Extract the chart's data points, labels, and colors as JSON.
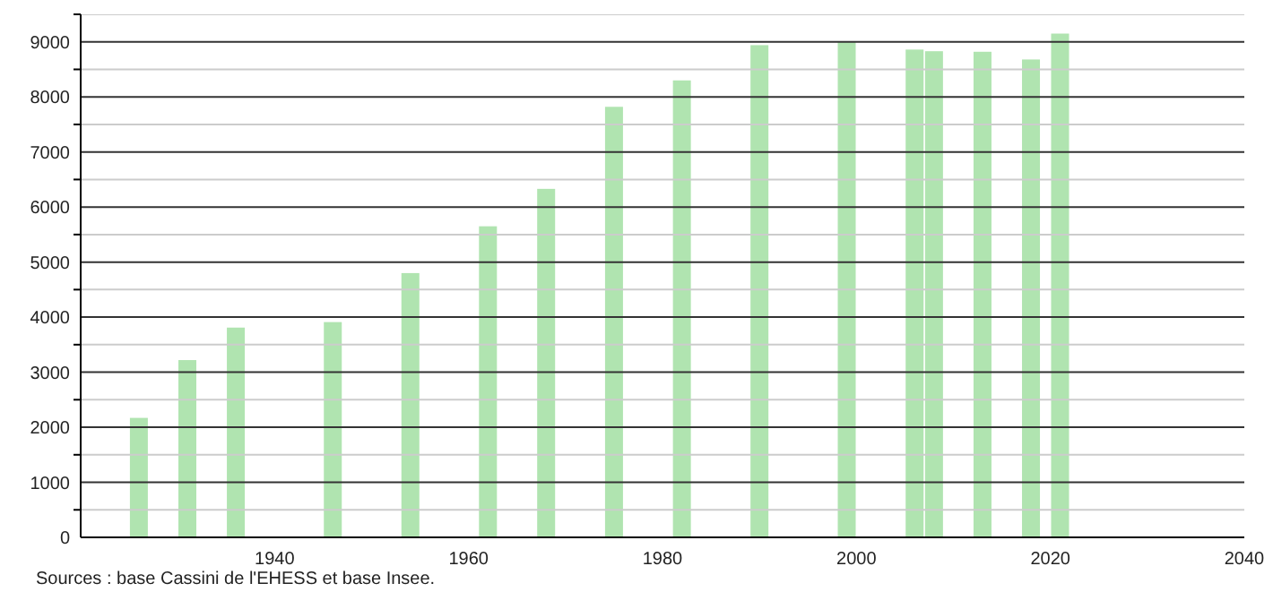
{
  "chart_data": {
    "type": "bar",
    "x": [
      1926,
      1931,
      1936,
      1946,
      1954,
      1962,
      1968,
      1975,
      1982,
      1990,
      1999,
      2006,
      2008,
      2013,
      2018,
      2021
    ],
    "values": [
      2170,
      3220,
      3810,
      3910,
      4800,
      5650,
      6330,
      7820,
      8300,
      8940,
      9000,
      8860,
      8830,
      8820,
      8680,
      9150
    ],
    "color": "#b0e4b0",
    "xlim": [
      1920,
      2040
    ],
    "xticks": [
      1940,
      1960,
      1980,
      2000,
      2020,
      2040
    ],
    "ylim": [
      0,
      9500
    ],
    "yticks": [
      0,
      {
        "value": 500,
        "label": null
      },
      1000,
      {
        "value": 1500,
        "label": null
      },
      2000,
      {
        "value": 2500,
        "label": null
      },
      3000,
      {
        "value": 3500,
        "label": null
      },
      4000,
      {
        "value": 4500,
        "label": null
      },
      5000,
      {
        "value": 5500,
        "label": null
      },
      6000,
      {
        "value": 6500,
        "label": null
      },
      7000,
      {
        "value": 7500,
        "label": null
      },
      8000,
      {
        "value": 8500,
        "label": null
      },
      9000,
      {
        "value": 9500,
        "label": null
      }
    ],
    "grid": "y",
    "annotations": [
      "Sources : base Cassini de l'EHESS et base Insee."
    ]
  }
}
